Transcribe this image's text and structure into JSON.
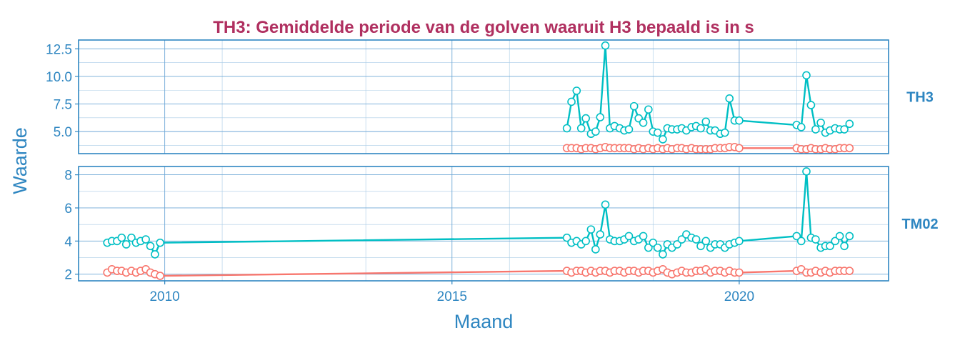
{
  "chart_data": {
    "type": "line",
    "title": "TH3: Gemiddelde periode van de golven waaruit H3 bepaald is in s",
    "xlabel": "Maand",
    "ylabel": "Waarde",
    "x_ticks": [
      "2010",
      "2015",
      "2020"
    ],
    "x_tick_values": [
      2010,
      2015,
      2020
    ],
    "xlim": [
      2008.5,
      2022.6
    ],
    "grid": true,
    "colors": {
      "teal": "#00bfc4",
      "salmon": "#f8766d",
      "axis": "#2e86c1",
      "title": "#b03060"
    },
    "panels": [
      {
        "label": "TH3",
        "ylim": [
          3.0,
          13.3
        ],
        "y_ticks": [
          "5.0",
          "7.5",
          "10.0",
          "12.5"
        ],
        "y_tick_values": [
          5.0,
          7.5,
          10.0,
          12.5
        ],
        "series": [
          {
            "color": "#00bfc4",
            "x": [
              2017.0,
              2017.08,
              2017.17,
              2017.25,
              2017.33,
              2017.42,
              2017.5,
              2017.58,
              2017.67,
              2017.75,
              2017.83,
              2017.92,
              2018.0,
              2018.08,
              2018.17,
              2018.25,
              2018.33,
              2018.42,
              2018.5,
              2018.58,
              2018.67,
              2018.75,
              2018.83,
              2018.92,
              2019.0,
              2019.08,
              2019.17,
              2019.25,
              2019.33,
              2019.42,
              2019.5,
              2019.58,
              2019.67,
              2019.75,
              2019.83,
              2019.92,
              2020.0,
              2021.0,
              2021.08,
              2021.17,
              2021.25,
              2021.33,
              2021.42,
              2021.5,
              2021.58,
              2021.67,
              2021.75,
              2021.83,
              2021.92
            ],
            "y": [
              5.3,
              7.7,
              8.7,
              5.3,
              6.2,
              4.8,
              5.0,
              6.3,
              12.8,
              5.3,
              5.5,
              5.3,
              5.1,
              5.2,
              7.3,
              6.2,
              5.8,
              7.0,
              5.0,
              4.9,
              4.3,
              5.3,
              5.2,
              5.2,
              5.3,
              5.1,
              5.4,
              5.5,
              5.3,
              5.9,
              5.1,
              5.1,
              4.8,
              4.9,
              8.0,
              6.0,
              6.0,
              5.6,
              5.4,
              10.1,
              7.4,
              5.2,
              5.8,
              4.9,
              5.1,
              5.3,
              5.2,
              5.2,
              5.7
            ]
          },
          {
            "color": "#f8766d",
            "x": [
              2017.0,
              2017.08,
              2017.17,
              2017.25,
              2017.33,
              2017.42,
              2017.5,
              2017.58,
              2017.67,
              2017.75,
              2017.83,
              2017.92,
              2018.0,
              2018.08,
              2018.17,
              2018.25,
              2018.33,
              2018.42,
              2018.5,
              2018.58,
              2018.67,
              2018.75,
              2018.83,
              2018.92,
              2019.0,
              2019.08,
              2019.17,
              2019.25,
              2019.33,
              2019.42,
              2019.5,
              2019.58,
              2019.67,
              2019.75,
              2019.83,
              2019.92,
              2020.0,
              2021.0,
              2021.08,
              2021.17,
              2021.25,
              2021.33,
              2021.42,
              2021.5,
              2021.58,
              2021.67,
              2021.75,
              2021.83,
              2021.92
            ],
            "y": [
              3.5,
              3.5,
              3.5,
              3.4,
              3.5,
              3.5,
              3.4,
              3.5,
              3.6,
              3.5,
              3.5,
              3.5,
              3.5,
              3.5,
              3.4,
              3.5,
              3.4,
              3.5,
              3.4,
              3.5,
              3.4,
              3.5,
              3.4,
              3.5,
              3.5,
              3.4,
              3.5,
              3.4,
              3.4,
              3.4,
              3.4,
              3.5,
              3.5,
              3.5,
              3.6,
              3.6,
              3.5,
              3.5,
              3.4,
              3.4,
              3.5,
              3.4,
              3.4,
              3.5,
              3.4,
              3.4,
              3.5,
              3.5,
              3.5
            ]
          }
        ]
      },
      {
        "label": "TM02",
        "ylim": [
          1.6,
          8.5
        ],
        "y_ticks": [
          "2",
          "4",
          "6",
          "8"
        ],
        "y_tick_values": [
          2,
          4,
          6,
          8
        ],
        "series": [
          {
            "color": "#00bfc4",
            "x": [
              2009.0,
              2009.08,
              2009.17,
              2009.25,
              2009.33,
              2009.42,
              2009.5,
              2009.58,
              2009.67,
              2009.75,
              2009.83,
              2009.92,
              2017.0,
              2017.08,
              2017.17,
              2017.25,
              2017.33,
              2017.42,
              2017.5,
              2017.58,
              2017.67,
              2017.75,
              2017.83,
              2017.92,
              2018.0,
              2018.08,
              2018.17,
              2018.25,
              2018.33,
              2018.42,
              2018.5,
              2018.58,
              2018.67,
              2018.75,
              2018.83,
              2018.92,
              2019.0,
              2019.08,
              2019.17,
              2019.25,
              2019.33,
              2019.42,
              2019.5,
              2019.58,
              2019.67,
              2019.75,
              2019.83,
              2019.92,
              2020.0,
              2021.0,
              2021.08,
              2021.17,
              2021.25,
              2021.33,
              2021.42,
              2021.5,
              2021.58,
              2021.67,
              2021.75,
              2021.83,
              2021.92
            ],
            "y": [
              3.9,
              4.0,
              4.0,
              4.2,
              3.8,
              4.2,
              3.9,
              4.0,
              4.1,
              3.7,
              3.2,
              3.9,
              4.2,
              3.9,
              4.0,
              3.8,
              4.0,
              4.7,
              3.5,
              4.4,
              6.2,
              4.1,
              4.0,
              4.0,
              4.1,
              4.3,
              4.0,
              4.1,
              4.3,
              3.6,
              3.9,
              3.6,
              3.2,
              3.8,
              3.6,
              3.8,
              4.1,
              4.4,
              4.2,
              4.1,
              3.7,
              4.0,
              3.6,
              3.8,
              3.8,
              3.6,
              3.8,
              3.9,
              4.0,
              4.3,
              4.0,
              8.2,
              4.2,
              4.1,
              3.6,
              3.7,
              3.7,
              4.0,
              4.3,
              3.7,
              4.3
            ]
          },
          {
            "color": "#f8766d",
            "x": [
              2009.0,
              2009.08,
              2009.17,
              2009.25,
              2009.33,
              2009.42,
              2009.5,
              2009.58,
              2009.67,
              2009.75,
              2009.83,
              2009.92,
              2017.0,
              2017.08,
              2017.17,
              2017.25,
              2017.33,
              2017.42,
              2017.5,
              2017.58,
              2017.67,
              2017.75,
              2017.83,
              2017.92,
              2018.0,
              2018.08,
              2018.17,
              2018.25,
              2018.33,
              2018.42,
              2018.5,
              2018.58,
              2018.67,
              2018.75,
              2018.83,
              2018.92,
              2019.0,
              2019.08,
              2019.17,
              2019.25,
              2019.33,
              2019.42,
              2019.5,
              2019.58,
              2019.67,
              2019.75,
              2019.83,
              2019.92,
              2020.0,
              2021.0,
              2021.08,
              2021.17,
              2021.25,
              2021.33,
              2021.42,
              2021.5,
              2021.58,
              2021.67,
              2021.75,
              2021.83,
              2021.92
            ],
            "y": [
              2.1,
              2.3,
              2.2,
              2.2,
              2.1,
              2.2,
              2.1,
              2.2,
              2.3,
              2.1,
              2.0,
              1.9,
              2.2,
              2.1,
              2.2,
              2.2,
              2.1,
              2.2,
              2.1,
              2.2,
              2.2,
              2.1,
              2.2,
              2.2,
              2.1,
              2.2,
              2.2,
              2.1,
              2.2,
              2.2,
              2.1,
              2.2,
              2.3,
              2.1,
              2.0,
              2.1,
              2.2,
              2.1,
              2.1,
              2.2,
              2.2,
              2.3,
              2.1,
              2.2,
              2.2,
              2.1,
              2.2,
              2.1,
              2.1,
              2.2,
              2.3,
              2.1,
              2.1,
              2.2,
              2.1,
              2.2,
              2.1,
              2.2,
              2.2,
              2.2,
              2.2
            ]
          }
        ]
      }
    ]
  }
}
